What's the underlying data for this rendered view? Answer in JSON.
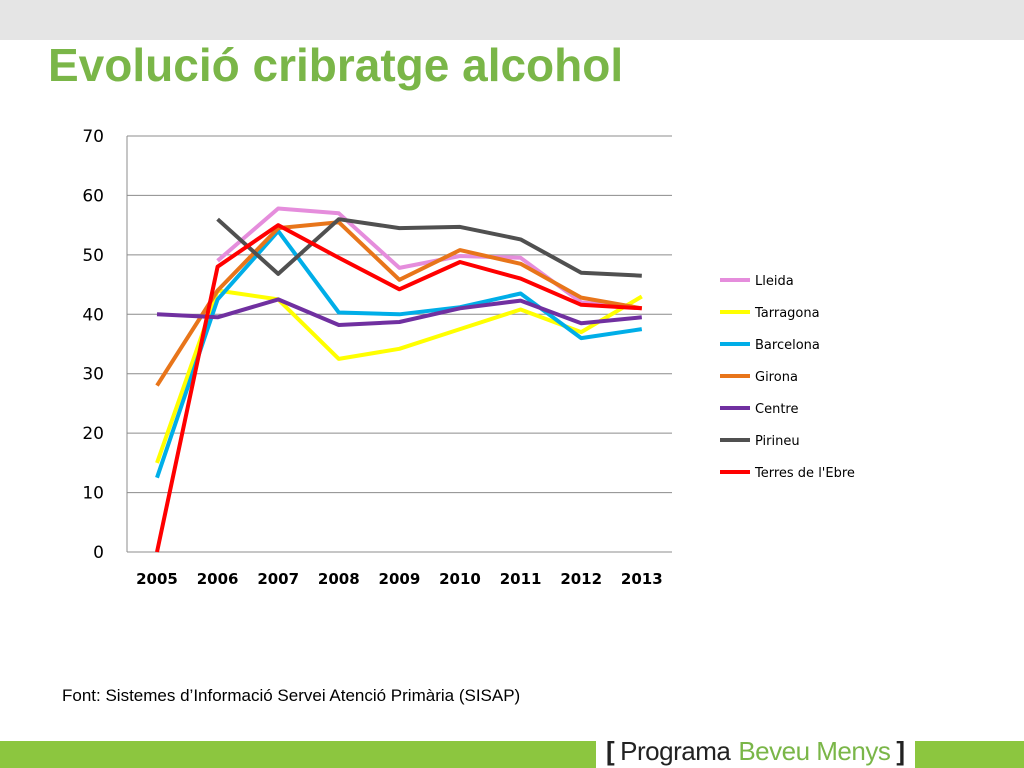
{
  "slide": {
    "title": "Evolució cribratge alcohol",
    "source": "Font: Sistemes d’Informació Servei Atenció Primària (SISAP)",
    "brand": {
      "open": "[",
      "part1": "Programa",
      "part2": "Beveu Menys",
      "close": "]"
    },
    "colors": {
      "title": "#7ab648",
      "band": "#8cc63f"
    }
  },
  "chart_data": {
    "type": "line",
    "title": "",
    "xlabel": "",
    "ylabel": "",
    "categories": [
      "2005",
      "2006",
      "2007",
      "2008",
      "2009",
      "2010",
      "2011",
      "2012",
      "2013"
    ],
    "ylim": [
      0,
      70
    ],
    "yticks": [
      0,
      10,
      20,
      30,
      40,
      50,
      60,
      70
    ],
    "grid": true,
    "legend": "right",
    "series": [
      {
        "name": "Lleida",
        "color": "#e58ddc",
        "values": [
          null,
          49,
          57.8,
          57,
          47.8,
          49.8,
          49.5,
          42,
          41
        ]
      },
      {
        "name": "Tarragona",
        "color": "#ffff00",
        "values": [
          15,
          44,
          42.5,
          32.5,
          34.2,
          37.5,
          40.8,
          37,
          43
        ]
      },
      {
        "name": "Barcelona",
        "color": "#00aee8",
        "values": [
          12.5,
          42.5,
          54,
          40.3,
          40,
          41.2,
          43.5,
          36,
          37.5
        ]
      },
      {
        "name": "Girona",
        "color": "#e8751a",
        "values": [
          28,
          44,
          54.5,
          55.5,
          45.8,
          50.8,
          48.5,
          42.8,
          41
        ]
      },
      {
        "name": "Centre",
        "color": "#7030a0",
        "values": [
          40,
          39.5,
          42.5,
          38.2,
          38.7,
          41,
          42.3,
          38.5,
          39.5
        ]
      },
      {
        "name": "Pirineu",
        "color": "#505050",
        "values": [
          null,
          56,
          46.8,
          56,
          54.5,
          54.7,
          52.6,
          47,
          46.5
        ]
      },
      {
        "name": "Terres de l'Ebre",
        "color": "#ff0000",
        "values": [
          0,
          48,
          55,
          49.5,
          44.2,
          48.8,
          46,
          41.6,
          41
        ]
      }
    ]
  }
}
